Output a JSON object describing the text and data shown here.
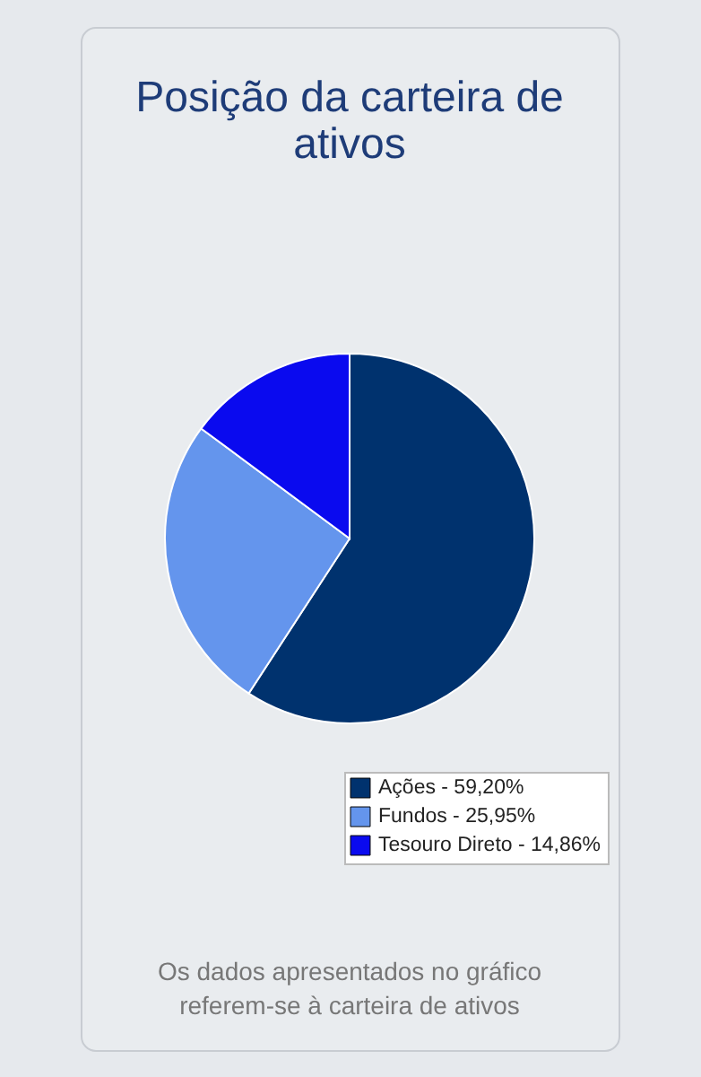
{
  "chart_data": {
    "type": "pie",
    "title": "Posição da carteira de ativos",
    "categories": [
      "Ações - 59,20%",
      "Fundos - 25,95%",
      "Tesouro Direto - 14,86%"
    ],
    "values": [
      59.2,
      25.95,
      14.86
    ],
    "colors": [
      "#00326e",
      "#6495ed",
      "#0a0aef"
    ],
    "legend": "bottom right",
    "annotations": [
      "Os dados apresentados no gráfico referem-se à carteira de ativos"
    ]
  }
}
